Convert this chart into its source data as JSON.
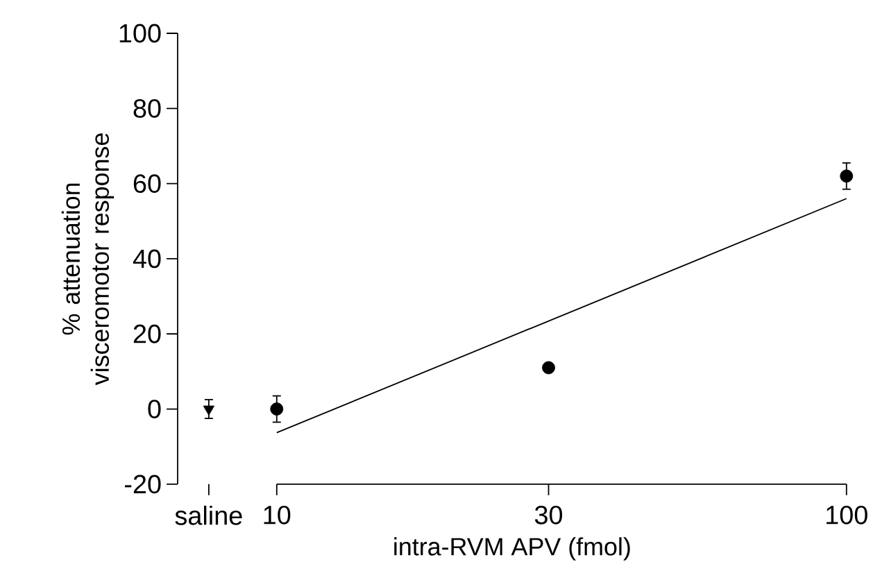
{
  "chart_data": {
    "type": "scatter",
    "xlabel": "intra-RVM APV (fmol)",
    "ylabel": "% attenuation visceromotor response",
    "log": "x",
    "xlim": [
      6.7,
      100
    ],
    "ylim": [
      -20,
      100
    ],
    "xticks": [
      {
        "value": 7.6,
        "label": "saline"
      },
      10,
      30,
      100
    ],
    "yticks": [
      -20,
      0,
      20,
      40,
      60,
      80,
      100
    ],
    "series": [
      {
        "marker": "triangle",
        "color": "#000000",
        "x": [
          7.6
        ],
        "values": [
          0
        ],
        "errors": [
          2.5
        ]
      },
      {
        "marker": "circle",
        "color": "#000000",
        "x": [
          10,
          30,
          100
        ],
        "values": [
          0,
          11,
          62
        ],
        "errors": [
          3.5,
          null,
          3.5
        ]
      },
      {
        "type": "line",
        "marker": "none",
        "color": "#000000",
        "x": [
          10,
          100
        ],
        "values": [
          -6.3,
          56
        ]
      }
    ]
  }
}
